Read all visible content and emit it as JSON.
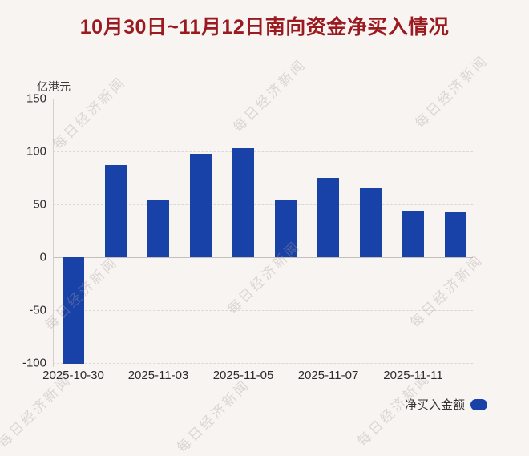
{
  "watermark_text": "每日经济新闻",
  "colors": {
    "background": "#f7f4f2",
    "bar": "#1842a7",
    "title": "#9a1a20"
  },
  "legend": {
    "label": "净买入金额"
  },
  "chart_data": {
    "type": "bar",
    "title": "10月30日~11月12日南向资金净买入情况",
    "unit_label": "亿港元",
    "xlabel": "",
    "ylabel": "亿港元",
    "ylim": [
      -100,
      150
    ],
    "y_ticks": [
      150,
      100,
      50,
      0,
      -50,
      -100
    ],
    "grid": "horizontal-dashed",
    "legend_position": "bottom-right",
    "bars": [
      {
        "date_label": "2025-10-30",
        "value": -101
      },
      {
        "date_label": "",
        "value": 87
      },
      {
        "date_label": "2025-11-03",
        "value": 54
      },
      {
        "date_label": "",
        "value": 98
      },
      {
        "date_label": "2025-11-05",
        "value": 103
      },
      {
        "date_label": "",
        "value": 54
      },
      {
        "date_label": "2025-11-07",
        "value": 75
      },
      {
        "date_label": "",
        "value": 66
      },
      {
        "date_label": "2025-11-11",
        "value": 44
      },
      {
        "date_label": "",
        "value": 43
      }
    ]
  }
}
